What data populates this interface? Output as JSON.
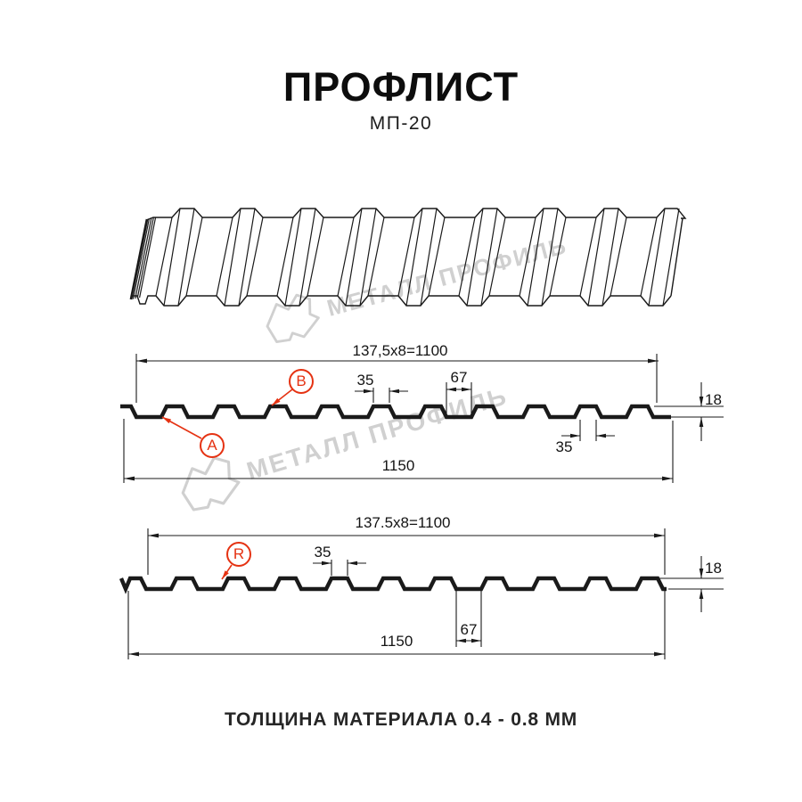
{
  "header": {
    "title": "ПРОФЛИСТ",
    "subtitle": "МП-20"
  },
  "cs1": {
    "working": "137,5x8=1100",
    "rib_top": "35",
    "valley": "67",
    "rib_bottom": "35",
    "height": "18",
    "total": "1150",
    "point_a": "A",
    "point_b": "B"
  },
  "cs2": {
    "working": "137.5x8=1100",
    "rib_top": "35",
    "valley": "67",
    "height": "18",
    "total": "1150",
    "point_r": "R"
  },
  "watermark": {
    "text": "МЕТАЛЛ ПРОФИЛЬ"
  },
  "footer": {
    "text": "ТОЛЩИНА МАТЕРИАЛА 0.4 - 0.8 ММ"
  },
  "colors": {
    "line": "#1a1a1a",
    "red": "#e53212",
    "watermark": "#d0d0d0"
  }
}
